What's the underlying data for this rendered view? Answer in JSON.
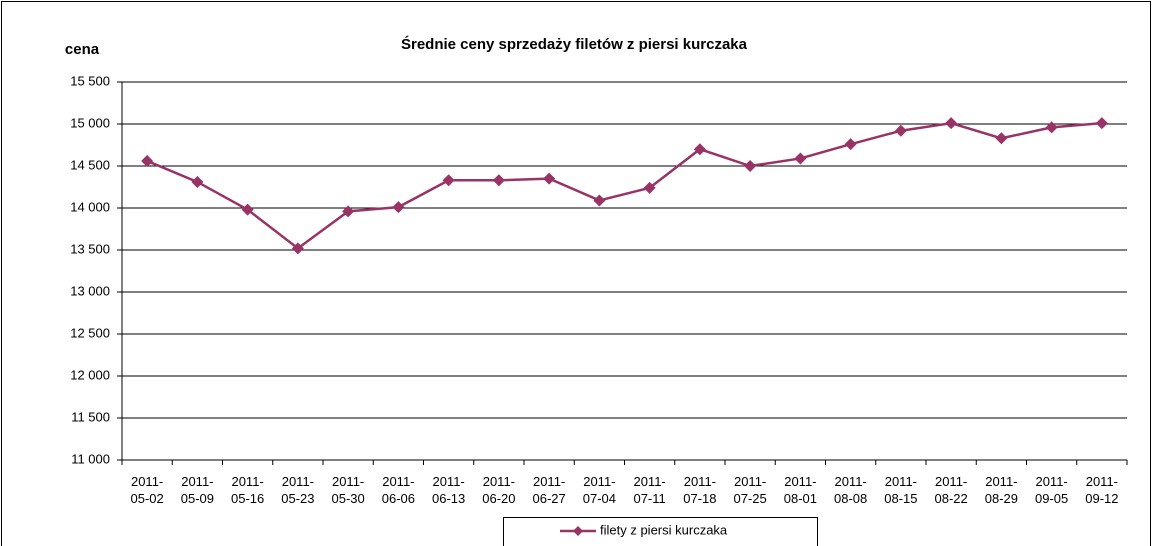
{
  "chart_data": {
    "type": "line",
    "title": "Średnie ceny sprzedaży filetów z piersi kurczaka",
    "y_label": "cena",
    "categories": [
      "2011-05-02",
      "2011-05-09",
      "2011-05-16",
      "2011-05-23",
      "2011-05-30",
      "2011-06-06",
      "2011-06-13",
      "2011-06-20",
      "2011-06-27",
      "2011-07-04",
      "2011-07-11",
      "2011-07-18",
      "2011-07-25",
      "2011-08-01",
      "2011-08-08",
      "2011-08-15",
      "2011-08-22",
      "2011-08-29",
      "2011-09-05",
      "2011-09-12"
    ],
    "series": [
      {
        "name": "filety z piersi kurczaka",
        "color": "#993366",
        "values": [
          14560,
          14310,
          13980,
          13520,
          13960,
          14010,
          14330,
          14330,
          14350,
          14090,
          14240,
          14700,
          14500,
          14590,
          14760,
          14920,
          15010,
          14830,
          14960,
          15010
        ]
      }
    ],
    "ylim": [
      11000,
      15500
    ],
    "yticks": [
      {
        "value": 11000,
        "label": "11 000"
      },
      {
        "value": 11500,
        "label": "11 500"
      },
      {
        "value": 12000,
        "label": "12 000"
      },
      {
        "value": 12500,
        "label": "12 500"
      },
      {
        "value": 13000,
        "label": "13 000"
      },
      {
        "value": 13500,
        "label": "13 500"
      },
      {
        "value": 14000,
        "label": "14 000"
      },
      {
        "value": 14500,
        "label": "14 500"
      },
      {
        "value": 15000,
        "label": "15 000"
      },
      {
        "value": 15500,
        "label": "15 500"
      }
    ],
    "grid": true,
    "legend": "bottom"
  }
}
